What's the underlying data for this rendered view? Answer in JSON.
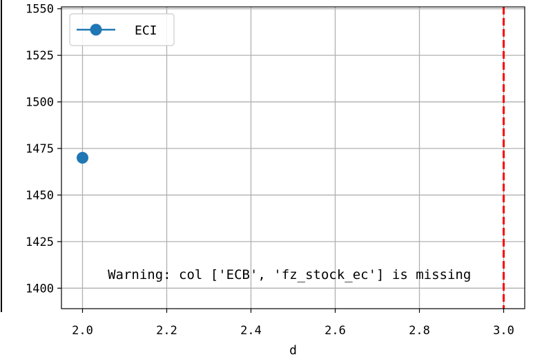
{
  "chart_data": {
    "type": "line",
    "xlabel": "d",
    "ylabel": "",
    "xlim": [
      1.95,
      3.05
    ],
    "ylim": [
      1389,
      1551
    ],
    "x_ticks": [
      2.0,
      2.2,
      2.4,
      2.6,
      2.8,
      3.0
    ],
    "x_tick_labels": [
      "2.0",
      "2.2",
      "2.4",
      "2.6",
      "2.8",
      "3.0"
    ],
    "y_ticks": [
      1400,
      1425,
      1450,
      1475,
      1500,
      1525,
      1550
    ],
    "y_tick_labels": [
      "1400",
      "1425",
      "1450",
      "1475",
      "1500",
      "1525",
      "1550"
    ],
    "grid": true,
    "legend_position": "top-left",
    "series": [
      {
        "name": "ECI",
        "color": "#1f77b4",
        "marker": "circle",
        "x": [
          2.0
        ],
        "y": [
          1470
        ]
      }
    ],
    "vline": {
      "x": 3.0,
      "color": "#ff0000",
      "style": "dashed"
    },
    "annotation": {
      "text": "Warning: col ['ECB', 'fz_stock_ec'] is missing",
      "x": 2.06,
      "y": 1405
    }
  }
}
